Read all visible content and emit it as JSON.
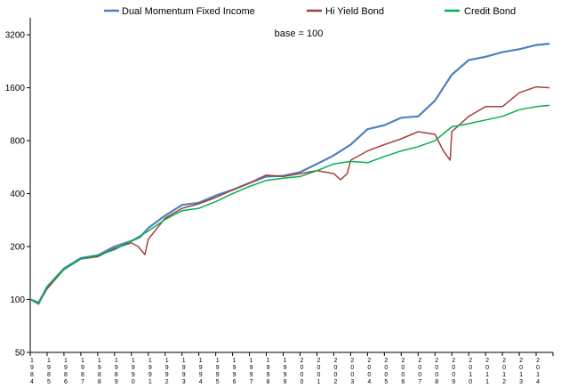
{
  "chart_data": {
    "type": "line",
    "annotation": "base = 100",
    "y_scale": "log",
    "ylim": [
      50,
      4000
    ],
    "y_ticks": [
      "50",
      "100",
      "200",
      "400",
      "800",
      "1600",
      "3200"
    ],
    "y_tick_values": [
      50,
      100,
      200,
      400,
      800,
      1600,
      3200
    ],
    "x_tick_labels": [
      "1984",
      "1985",
      "1986",
      "1987",
      "1988",
      "1989",
      "1990",
      "1991",
      "1992",
      "1993",
      "1994",
      "1995",
      "1996",
      "1997",
      "1998",
      "1999",
      "2000",
      "2001",
      "2002",
      "2003",
      "2004",
      "2005",
      "2006",
      "2007",
      "2008",
      "2009",
      "2010",
      "2011",
      "2012",
      "2013",
      "2014"
    ],
    "xlim": [
      1984.0,
      2015.0
    ],
    "grid": false,
    "legend_position": "top",
    "series": [
      {
        "name": "Dual Momentum Fixed Income",
        "color": "#4f81bd",
        "x": [
          1984,
          1984.5,
          1985,
          1986,
          1987,
          1988,
          1989,
          1990,
          1990.5,
          1991,
          1992,
          1993,
          1994,
          1995,
          1996,
          1997,
          1998,
          1999,
          2000,
          2001,
          2002,
          2003,
          2004,
          2005,
          2006,
          2007,
          2008,
          2009,
          2010,
          2011,
          2012,
          2013,
          2014,
          2014.8
        ],
        "y": [
          100,
          96,
          118,
          150,
          172,
          178,
          200,
          215,
          226,
          255,
          300,
          345,
          355,
          390,
          420,
          460,
          500,
          505,
          530,
          590,
          660,
          760,
          930,
          980,
          1080,
          1100,
          1350,
          1900,
          2300,
          2400,
          2550,
          2650,
          2800,
          2850
        ]
      },
      {
        "name": "Hi Yield Bond",
        "color": "#a5403c",
        "x": [
          1984,
          1984.5,
          1985,
          1986,
          1987,
          1988,
          1989,
          1990,
          1990.4,
          1990.8,
          1991,
          1992,
          1993,
          1994,
          1995,
          1996,
          1997,
          1998,
          1999,
          2000,
          2001,
          2002,
          2002.4,
          2002.8,
          2003,
          2004,
          2005,
          2006,
          2007,
          2008,
          2008.5,
          2008.9,
          2009,
          2010,
          2011,
          2012,
          2013,
          2014,
          2014.8
        ],
        "y": [
          100,
          95,
          115,
          148,
          170,
          175,
          195,
          210,
          200,
          180,
          220,
          290,
          330,
          350,
          380,
          420,
          460,
          510,
          500,
          520,
          540,
          520,
          480,
          520,
          620,
          700,
          760,
          820,
          900,
          870,
          700,
          620,
          900,
          1100,
          1250,
          1250,
          1500,
          1620,
          1600
        ]
      },
      {
        "name": "Credit Bond",
        "color": "#00b050",
        "x": [
          1984,
          1984.5,
          1985,
          1986,
          1987,
          1988,
          1989,
          1990,
          1991,
          1992,
          1993,
          1994,
          1995,
          1996,
          1997,
          1998,
          1999,
          2000,
          2001,
          2002,
          2003,
          2004,
          2005,
          2006,
          2007,
          2008,
          2009,
          2010,
          2011,
          2012,
          2013,
          2014,
          2014.8
        ],
        "y": [
          100,
          94,
          118,
          148,
          170,
          178,
          192,
          215,
          245,
          285,
          320,
          330,
          360,
          400,
          440,
          475,
          490,
          500,
          540,
          590,
          610,
          600,
          650,
          700,
          740,
          800,
          960,
          1000,
          1050,
          1100,
          1200,
          1250,
          1270
        ]
      }
    ]
  }
}
